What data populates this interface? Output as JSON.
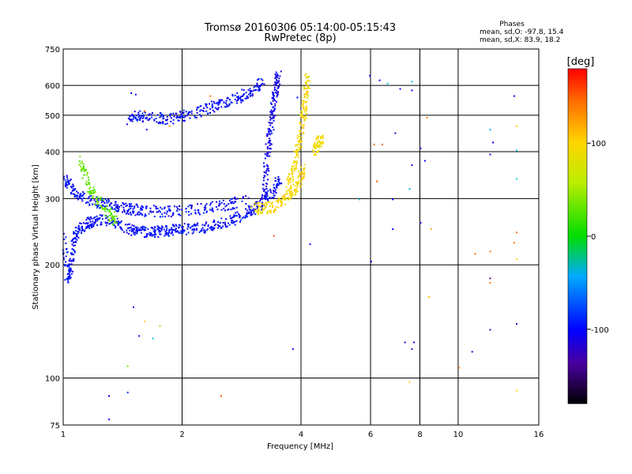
{
  "chart_data": {
    "type": "scatter",
    "title": "Tromsø 20160306 05:14:00-05:15:43",
    "subtitle": "RwPretec (8p)",
    "xlabel": "Frequency [MHz]",
    "ylabel": "Stationary phase Virtual Height [km]",
    "xscale": "log",
    "yscale": "log",
    "xlim": [
      1,
      16
    ],
    "ylim": [
      75,
      750
    ],
    "xticks": [
      1,
      2,
      4,
      6,
      8,
      10,
      16
    ],
    "xtick_labels": [
      "1",
      "2",
      "4",
      "6",
      "8",
      "10",
      "16"
    ],
    "yticks": [
      75,
      100,
      200,
      300,
      400,
      500,
      600,
      750
    ],
    "ytick_labels": [
      "75",
      "100",
      "200",
      "300",
      "400",
      "500",
      "600",
      "750"
    ],
    "grid": true,
    "stats": {
      "heading": "Phases",
      "o_line": "mean, sd,O: -97.8, 15.4",
      "x_line": "mean, sd,X:  83.9, 18.2"
    },
    "colorbar": {
      "label": "[deg]",
      "range": [
        -180,
        180
      ],
      "ticks": [
        100,
        0,
        -100
      ],
      "tick_labels": [
        "100",
        "0",
        "-100"
      ]
    },
    "traces": [
      {
        "kind": "o-lower",
        "phase": -100,
        "points": [
          [
            1.0,
            240
          ],
          [
            1.02,
            185
          ],
          [
            1.04,
            200
          ],
          [
            1.06,
            235
          ],
          [
            1.1,
            250
          ],
          [
            1.15,
            260
          ],
          [
            1.2,
            265
          ],
          [
            1.3,
            262
          ],
          [
            1.4,
            255
          ],
          [
            1.5,
            248
          ],
          [
            1.6,
            246
          ],
          [
            1.7,
            246
          ],
          [
            1.8,
            247
          ],
          [
            1.9,
            249
          ],
          [
            2.0,
            250
          ],
          [
            2.2,
            252
          ],
          [
            2.4,
            256
          ],
          [
            2.6,
            262
          ],
          [
            2.8,
            270
          ],
          [
            3.0,
            282
          ],
          [
            3.2,
            296
          ],
          [
            3.4,
            315
          ],
          [
            3.5,
            340
          ]
        ]
      },
      {
        "kind": "o-band",
        "phase": -100,
        "points": [
          [
            1.0,
            340
          ],
          [
            1.05,
            320
          ],
          [
            1.1,
            305
          ],
          [
            1.2,
            295
          ],
          [
            1.3,
            290
          ],
          [
            1.4,
            285
          ],
          [
            1.5,
            282
          ],
          [
            1.6,
            280
          ],
          [
            1.8,
            278
          ],
          [
            2.0,
            280
          ],
          [
            2.3,
            285
          ],
          [
            2.6,
            290
          ],
          [
            2.9,
            300
          ]
        ]
      },
      {
        "kind": "o-cusp",
        "phase": -108,
        "points": [
          [
            3.2,
            300
          ],
          [
            3.25,
            360
          ],
          [
            3.3,
            420
          ],
          [
            3.35,
            480
          ],
          [
            3.4,
            540
          ],
          [
            3.45,
            600
          ],
          [
            3.5,
            640
          ]
        ]
      },
      {
        "kind": "o-second",
        "phase": -100,
        "points": [
          [
            1.45,
            490
          ],
          [
            1.55,
            500
          ],
          [
            1.7,
            495
          ],
          [
            1.85,
            490
          ],
          [
            2.0,
            500
          ],
          [
            2.2,
            515
          ],
          [
            2.4,
            530
          ],
          [
            2.6,
            545
          ],
          [
            2.8,
            560
          ],
          [
            3.0,
            585
          ],
          [
            3.2,
            620
          ]
        ]
      },
      {
        "kind": "x-lower",
        "phase": 95,
        "points": [
          [
            3.0,
            285
          ],
          [
            3.2,
            283
          ],
          [
            3.4,
            287
          ],
          [
            3.6,
            298
          ],
          [
            3.8,
            315
          ],
          [
            3.95,
            335
          ],
          [
            4.05,
            360
          ]
        ]
      },
      {
        "kind": "x-cusp",
        "phase": 92,
        "points": [
          [
            3.7,
            330
          ],
          [
            3.8,
            360
          ],
          [
            3.9,
            400
          ],
          [
            4.0,
            450
          ],
          [
            4.05,
            520
          ],
          [
            4.1,
            580
          ],
          [
            4.15,
            640
          ]
        ]
      },
      {
        "kind": "x-tail",
        "phase": 90,
        "points": [
          [
            4.3,
            400
          ],
          [
            4.4,
            420
          ],
          [
            4.5,
            440
          ]
        ]
      },
      {
        "kind": "green-patch",
        "phase": 25,
        "points": [
          [
            1.1,
            380
          ],
          [
            1.15,
            330
          ],
          [
            1.2,
            305
          ],
          [
            1.3,
            275
          ],
          [
            1.35,
            262
          ]
        ]
      }
    ],
    "scatter_points": [
      [
        1.48,
        575,
        -100
      ],
      [
        1.52,
        570,
        -100
      ],
      [
        1.6,
        515,
        140
      ],
      [
        1.62,
        460,
        -100
      ],
      [
        1.85,
        470,
        130
      ],
      [
        2.35,
        565,
        140
      ],
      [
        2.5,
        90,
        150
      ],
      [
        1.5,
        155,
        -100
      ],
      [
        1.55,
        130,
        -100
      ],
      [
        1.6,
        142,
        100
      ],
      [
        1.68,
        128,
        -40
      ],
      [
        1.75,
        138,
        40
      ],
      [
        1.45,
        108,
        30
      ],
      [
        1.3,
        90,
        -100
      ],
      [
        1.45,
        92,
        -90
      ],
      [
        1.3,
        78,
        -100
      ],
      [
        5.95,
        640,
        -100
      ],
      [
        6.3,
        622,
        -100
      ],
      [
        6.6,
        610,
        -30
      ],
      [
        7.1,
        590,
        -100
      ],
      [
        7.6,
        617,
        -30
      ],
      [
        7.6,
        585,
        -100
      ],
      [
        6.1,
        420,
        140
      ],
      [
        6.4,
        420,
        140
      ],
      [
        6.9,
        450,
        -130
      ],
      [
        7.6,
        370,
        -100
      ],
      [
        8.3,
        495,
        130
      ],
      [
        8.0,
        410,
        -100
      ],
      [
        8.2,
        380,
        -100
      ],
      [
        6.2,
        335,
        150
      ],
      [
        5.6,
        300,
        -30
      ],
      [
        6.8,
        300,
        -100
      ],
      [
        7.5,
        320,
        -50
      ],
      [
        8.5,
        250,
        120
      ],
      [
        8.0,
        260,
        -100
      ],
      [
        6.8,
        250,
        -100
      ],
      [
        6.0,
        205,
        -100
      ],
      [
        7.3,
        125,
        -120
      ],
      [
        7.7,
        125,
        -100
      ],
      [
        8.4,
        165,
        110
      ],
      [
        7.6,
        120,
        -130
      ],
      [
        7.5,
        98,
        100
      ],
      [
        10.0,
        107,
        140
      ],
      [
        10.8,
        118,
        -120
      ],
      [
        11.0,
        215,
        140
      ],
      [
        12.0,
        218,
        140
      ],
      [
        12.0,
        185,
        -140
      ],
      [
        12.0,
        180,
        140
      ],
      [
        12.0,
        135,
        -130
      ],
      [
        12.0,
        395,
        -100
      ],
      [
        12.2,
        425,
        -100
      ],
      [
        12.0,
        460,
        -60
      ],
      [
        13.8,
        565,
        -100
      ],
      [
        14.0,
        470,
        100
      ],
      [
        14.0,
        405,
        -30
      ],
      [
        14.0,
        340,
        -30
      ],
      [
        14.0,
        245,
        140
      ],
      [
        13.8,
        230,
        140
      ],
      [
        14.0,
        208,
        100
      ],
      [
        14.0,
        140,
        -130
      ],
      [
        14.0,
        93,
        100
      ],
      [
        4.2,
        228,
        -100
      ],
      [
        3.8,
        120,
        -100
      ],
      [
        3.4,
        240,
        150
      ],
      [
        3.9,
        560,
        -100
      ]
    ]
  }
}
